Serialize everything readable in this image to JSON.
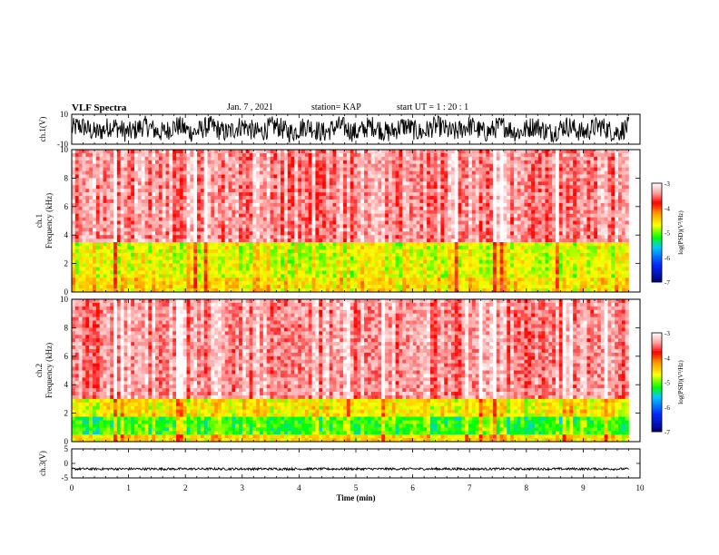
{
  "header": {
    "title": "VLF Spectra",
    "date": "Jan. 7 , 2021",
    "station": "station= KAP",
    "start": "start UT = 1 : 20 : 1"
  },
  "chart_data": [
    {
      "type": "line",
      "panel": "ch1-waveform",
      "ylabel": "ch.1(V)",
      "ylim": [
        -10,
        10
      ],
      "y_tick_labels": [
        "10",
        "-10"
      ],
      "xlim": [
        0,
        10
      ],
      "data_extent_x": [
        0,
        9.8
      ],
      "approx_envelope": {
        "max": 10,
        "min": -10
      },
      "color": "#000000"
    },
    {
      "type": "heatmap",
      "panel": "ch1-spectrogram",
      "ylabel": "ch.1\nFrequency (kHz)",
      "xlim": [
        0,
        10
      ],
      "ylim": [
        0,
        10
      ],
      "y_ticks": [
        0,
        2,
        4,
        6,
        8,
        10
      ],
      "data_extent_x": [
        0,
        9.8
      ],
      "colorbar": {
        "label": "log(PSD)(V²/Hz)",
        "range": [
          -7,
          -3
        ],
        "ticks": [
          -7,
          -6,
          -5,
          -4,
          -3
        ]
      },
      "bands": [
        {
          "from": 0,
          "to": 1,
          "level": -4.5
        },
        {
          "from": 1,
          "to": 3.5,
          "level": -4.7
        },
        {
          "from": 3.5,
          "to": 10,
          "level": -3.4
        }
      ]
    },
    {
      "type": "heatmap",
      "panel": "ch2-spectrogram",
      "ylabel": "ch.2\nFrequency (kHz)",
      "xlim": [
        0,
        10
      ],
      "ylim": [
        0,
        10
      ],
      "y_ticks": [
        0,
        2,
        4,
        6,
        8,
        10
      ],
      "data_extent_x": [
        0,
        9.8
      ],
      "colorbar": {
        "label": "log(PSD)(V²/Hz)",
        "range": [
          -7,
          -3
        ],
        "ticks": [
          -7,
          -6,
          -5,
          -4,
          -3
        ]
      },
      "bands": [
        {
          "from": 0,
          "to": 0.6,
          "level": -4.5
        },
        {
          "from": 0.6,
          "to": 1.8,
          "level": -5.1
        },
        {
          "from": 1.8,
          "to": 3.0,
          "level": -4.6
        },
        {
          "from": 3.0,
          "to": 10,
          "level": -3.4
        }
      ]
    },
    {
      "type": "line",
      "panel": "ch3-waveform",
      "ylabel": "ch.3(V)",
      "ylim": [
        -5,
        5
      ],
      "y_tick_labels": [
        "5",
        "0",
        "-5"
      ],
      "xlim": [
        0,
        10
      ],
      "data_extent_x": [
        0,
        9.8
      ],
      "approx_envelope": {
        "max": -1.5,
        "min": -2.3
      },
      "color": "#000000"
    }
  ],
  "x_axis": {
    "label": "Time (min)",
    "ticks": [
      0,
      1,
      2,
      3,
      4,
      5,
      6,
      7,
      8,
      9,
      10
    ]
  }
}
